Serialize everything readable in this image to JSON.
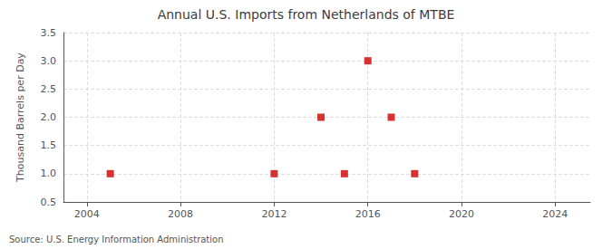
{
  "chart_data": {
    "type": "scatter",
    "title": "Annual U.S. Imports from Netherlands of MTBE",
    "ylabel": "Thousand Barrels per Day",
    "annotation": "Source: U.S. Energy Information Administration",
    "x": [
      2005,
      2012,
      2014,
      2015,
      2016,
      2017,
      2018
    ],
    "values": [
      1.0,
      1.0,
      2.0,
      1.0,
      3.0,
      2.0,
      1.0
    ],
    "color": "#cc0000",
    "marker": "square",
    "xlim": [
      2003.0,
      2025.5
    ],
    "ylim": [
      0.5,
      3.5
    ],
    "xticks": [
      2004,
      2008,
      2012,
      2016,
      2020,
      2024
    ],
    "yticks": [
      0.5,
      {
        "value": 1.0,
        "label": "1.0"
      },
      1.5,
      {
        "value": 2.0,
        "label": "2.0"
      },
      2.5,
      {
        "value": 3.0,
        "label": "3.0"
      },
      3.5
    ],
    "grid": true
  }
}
